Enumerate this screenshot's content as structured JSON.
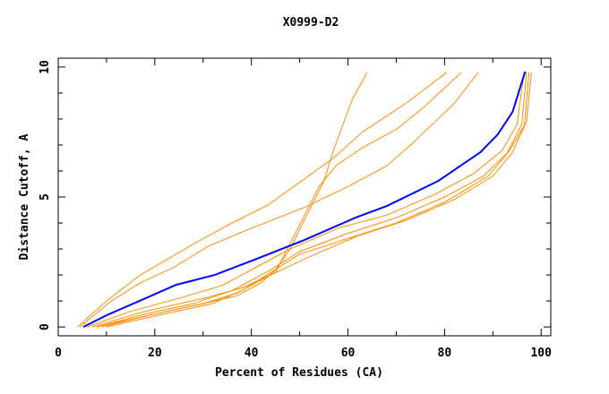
{
  "chart_data": {
    "type": "line",
    "title": "X0999-D2",
    "xlabel": "Percent of Residues (CA)",
    "ylabel": "Distance Cutoff, A",
    "xlim": [
      0,
      102
    ],
    "ylim": [
      -0.34,
      10.34
    ],
    "x_ticks": [
      "0",
      "20",
      "40",
      "60",
      "80",
      "100"
    ],
    "y_ticks": [
      "0",
      "5",
      "10"
    ],
    "grid": false,
    "colors": {
      "highlight": "#0000ff",
      "others": "#ff8c00"
    },
    "series": [
      {
        "name": "orange-1",
        "highlight": false,
        "points": [
          [
            4,
            0
          ],
          [
            10,
            1.0
          ],
          [
            17,
            2.0
          ],
          [
            29,
            3.3
          ],
          [
            36,
            4.0
          ],
          [
            43.5,
            4.7
          ],
          [
            51,
            5.7
          ],
          [
            57,
            6.5
          ],
          [
            63,
            7.5
          ],
          [
            72,
            8.6
          ],
          [
            80.5,
            9.8
          ]
        ]
      },
      {
        "name": "orange-2",
        "highlight": false,
        "points": [
          [
            4.5,
            0
          ],
          [
            11,
            1.0
          ],
          [
            17,
            1.7
          ],
          [
            24,
            2.3
          ],
          [
            31,
            3.1
          ],
          [
            40,
            3.8
          ],
          [
            51,
            4.6
          ],
          [
            60,
            5.4
          ],
          [
            68,
            6.2
          ],
          [
            73,
            7.0
          ],
          [
            77.5,
            7.8
          ],
          [
            82,
            8.6
          ],
          [
            87,
            9.8
          ]
        ]
      },
      {
        "name": "orange-3",
        "highlight": false,
        "points": [
          [
            8,
            0
          ],
          [
            20,
            0.5
          ],
          [
            30,
            0.9
          ],
          [
            37,
            1.2
          ],
          [
            42,
            1.7
          ],
          [
            45,
            2.2
          ],
          [
            48,
            3.0
          ],
          [
            52,
            4.5
          ],
          [
            55,
            5.6
          ],
          [
            57,
            6.8
          ],
          [
            59,
            7.8
          ],
          [
            61,
            8.8
          ],
          [
            64,
            9.8
          ]
        ]
      },
      {
        "name": "orange-4",
        "highlight": false,
        "points": [
          [
            7,
            0
          ],
          [
            18,
            0.6
          ],
          [
            30,
            1.1
          ],
          [
            38,
            1.5
          ],
          [
            45,
            2.1
          ],
          [
            48,
            3.2
          ],
          [
            51,
            4.3
          ],
          [
            54,
            5.4
          ],
          [
            57.5,
            6.2
          ],
          [
            63,
            6.9
          ],
          [
            70,
            7.6
          ],
          [
            76,
            8.5
          ],
          [
            83.5,
            9.8
          ]
        ]
      },
      {
        "name": "orange-5",
        "highlight": false,
        "points": [
          [
            6,
            0
          ],
          [
            15,
            0.6
          ],
          [
            25,
            1.1
          ],
          [
            34,
            1.6
          ],
          [
            42,
            2.4
          ],
          [
            48,
            3.0
          ],
          [
            58,
            3.8
          ],
          [
            68,
            4.3
          ],
          [
            78,
            5.1
          ],
          [
            86,
            5.9
          ],
          [
            92,
            6.8
          ],
          [
            95,
            7.8
          ],
          [
            96.5,
            9.8
          ]
        ]
      },
      {
        "name": "orange-6",
        "highlight": false,
        "points": [
          [
            8,
            0
          ],
          [
            18,
            0.5
          ],
          [
            28,
            0.9
          ],
          [
            36,
            1.4
          ],
          [
            44,
            2.2
          ],
          [
            50,
            2.9
          ],
          [
            60,
            3.6
          ],
          [
            70,
            4.2
          ],
          [
            80,
            5.0
          ],
          [
            88,
            5.8
          ],
          [
            93,
            6.7
          ],
          [
            96,
            7.8
          ],
          [
            97,
            9.8
          ]
        ]
      },
      {
        "name": "orange-7",
        "highlight": false,
        "points": [
          [
            9,
            0
          ],
          [
            20,
            0.5
          ],
          [
            30,
            0.9
          ],
          [
            37,
            1.3
          ],
          [
            44,
            2.0
          ],
          [
            52,
            2.7
          ],
          [
            62,
            3.5
          ],
          [
            72,
            4.1
          ],
          [
            82,
            4.9
          ],
          [
            90,
            5.8
          ],
          [
            94,
            6.7
          ],
          [
            96.5,
            7.7
          ],
          [
            97.5,
            9.8
          ]
        ]
      },
      {
        "name": "orange-8",
        "highlight": false,
        "points": [
          [
            10,
            0
          ],
          [
            22,
            0.5
          ],
          [
            32,
            0.9
          ],
          [
            38,
            1.4
          ],
          [
            44,
            2.1
          ],
          [
            50,
            2.8
          ],
          [
            60,
            3.4
          ],
          [
            70,
            4.0
          ],
          [
            80,
            4.8
          ],
          [
            89,
            5.8
          ],
          [
            93.5,
            6.8
          ],
          [
            97,
            7.9
          ],
          [
            98,
            9.8
          ]
        ]
      },
      {
        "name": "blue",
        "highlight": true,
        "points": [
          [
            5.2,
            0
          ],
          [
            10,
            0.45
          ],
          [
            17.2,
            1.03
          ],
          [
            24.4,
            1.62
          ],
          [
            32.4,
            2.0
          ],
          [
            41.1,
            2.62
          ],
          [
            50.9,
            3.34
          ],
          [
            61.5,
            4.2
          ],
          [
            68.1,
            4.66
          ],
          [
            78.7,
            5.62
          ],
          [
            87.4,
            6.72
          ],
          [
            91,
            7.4
          ],
          [
            94.1,
            8.28
          ],
          [
            96.7,
            9.83
          ]
        ]
      }
    ]
  }
}
